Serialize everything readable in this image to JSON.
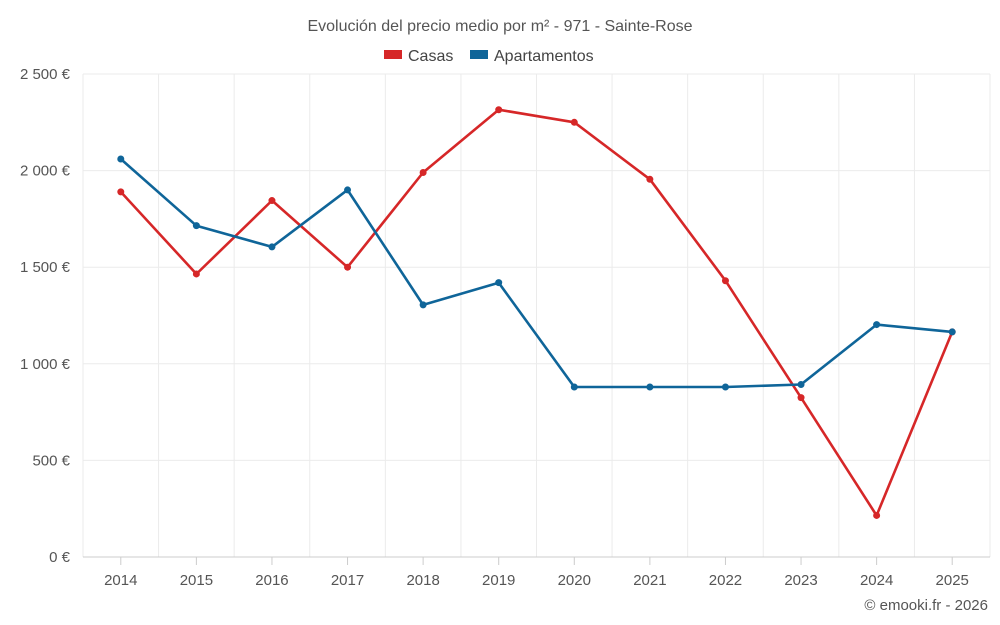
{
  "chart_data": {
    "type": "line",
    "title": "Evolución del precio medio por m² - 971 - Sainte-Rose",
    "categories": [
      "2014",
      "2015",
      "2016",
      "2017",
      "2018",
      "2019",
      "2020",
      "2021",
      "2022",
      "2023",
      "2024",
      "2025"
    ],
    "series": [
      {
        "name": "Casas",
        "color": "#d62728",
        "values": [
          1890,
          1465,
          1845,
          1500,
          1990,
          2315,
          2250,
          1955,
          1430,
          825,
          215,
          1165
        ]
      },
      {
        "name": "Apartamentos",
        "color": "#0f6599",
        "values": [
          2060,
          1715,
          1605,
          1900,
          1305,
          1420,
          880,
          880,
          880,
          893,
          1203,
          1165
        ]
      }
    ],
    "ylim": [
      0,
      2500
    ],
    "yticks": [
      0,
      500,
      1000,
      1500,
      2000,
      2500
    ],
    "ytick_labels": [
      "0 €",
      "500 €",
      "1 000 €",
      "1 500 €",
      "2 000 €",
      "2 500 €"
    ],
    "xlabel": "",
    "ylabel": "",
    "grid": true,
    "legend_position": "top-center"
  },
  "credit": "© emooki.fr - 2026"
}
